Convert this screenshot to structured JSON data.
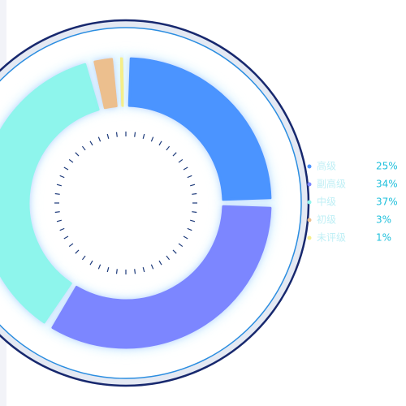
{
  "chart_data": {
    "type": "donut",
    "categories": [
      "高级",
      "副高级",
      "中级",
      "初级",
      "未评级"
    ],
    "values": [
      25,
      34,
      37,
      3,
      1
    ],
    "value_labels": [
      "25%",
      "34%",
      "37%",
      "3%",
      "1%"
    ],
    "colors": [
      "#4b94ff",
      "#7b86ff",
      "#8ef5ec",
      "#ecbf8e",
      "#f5ee8a"
    ]
  }
}
